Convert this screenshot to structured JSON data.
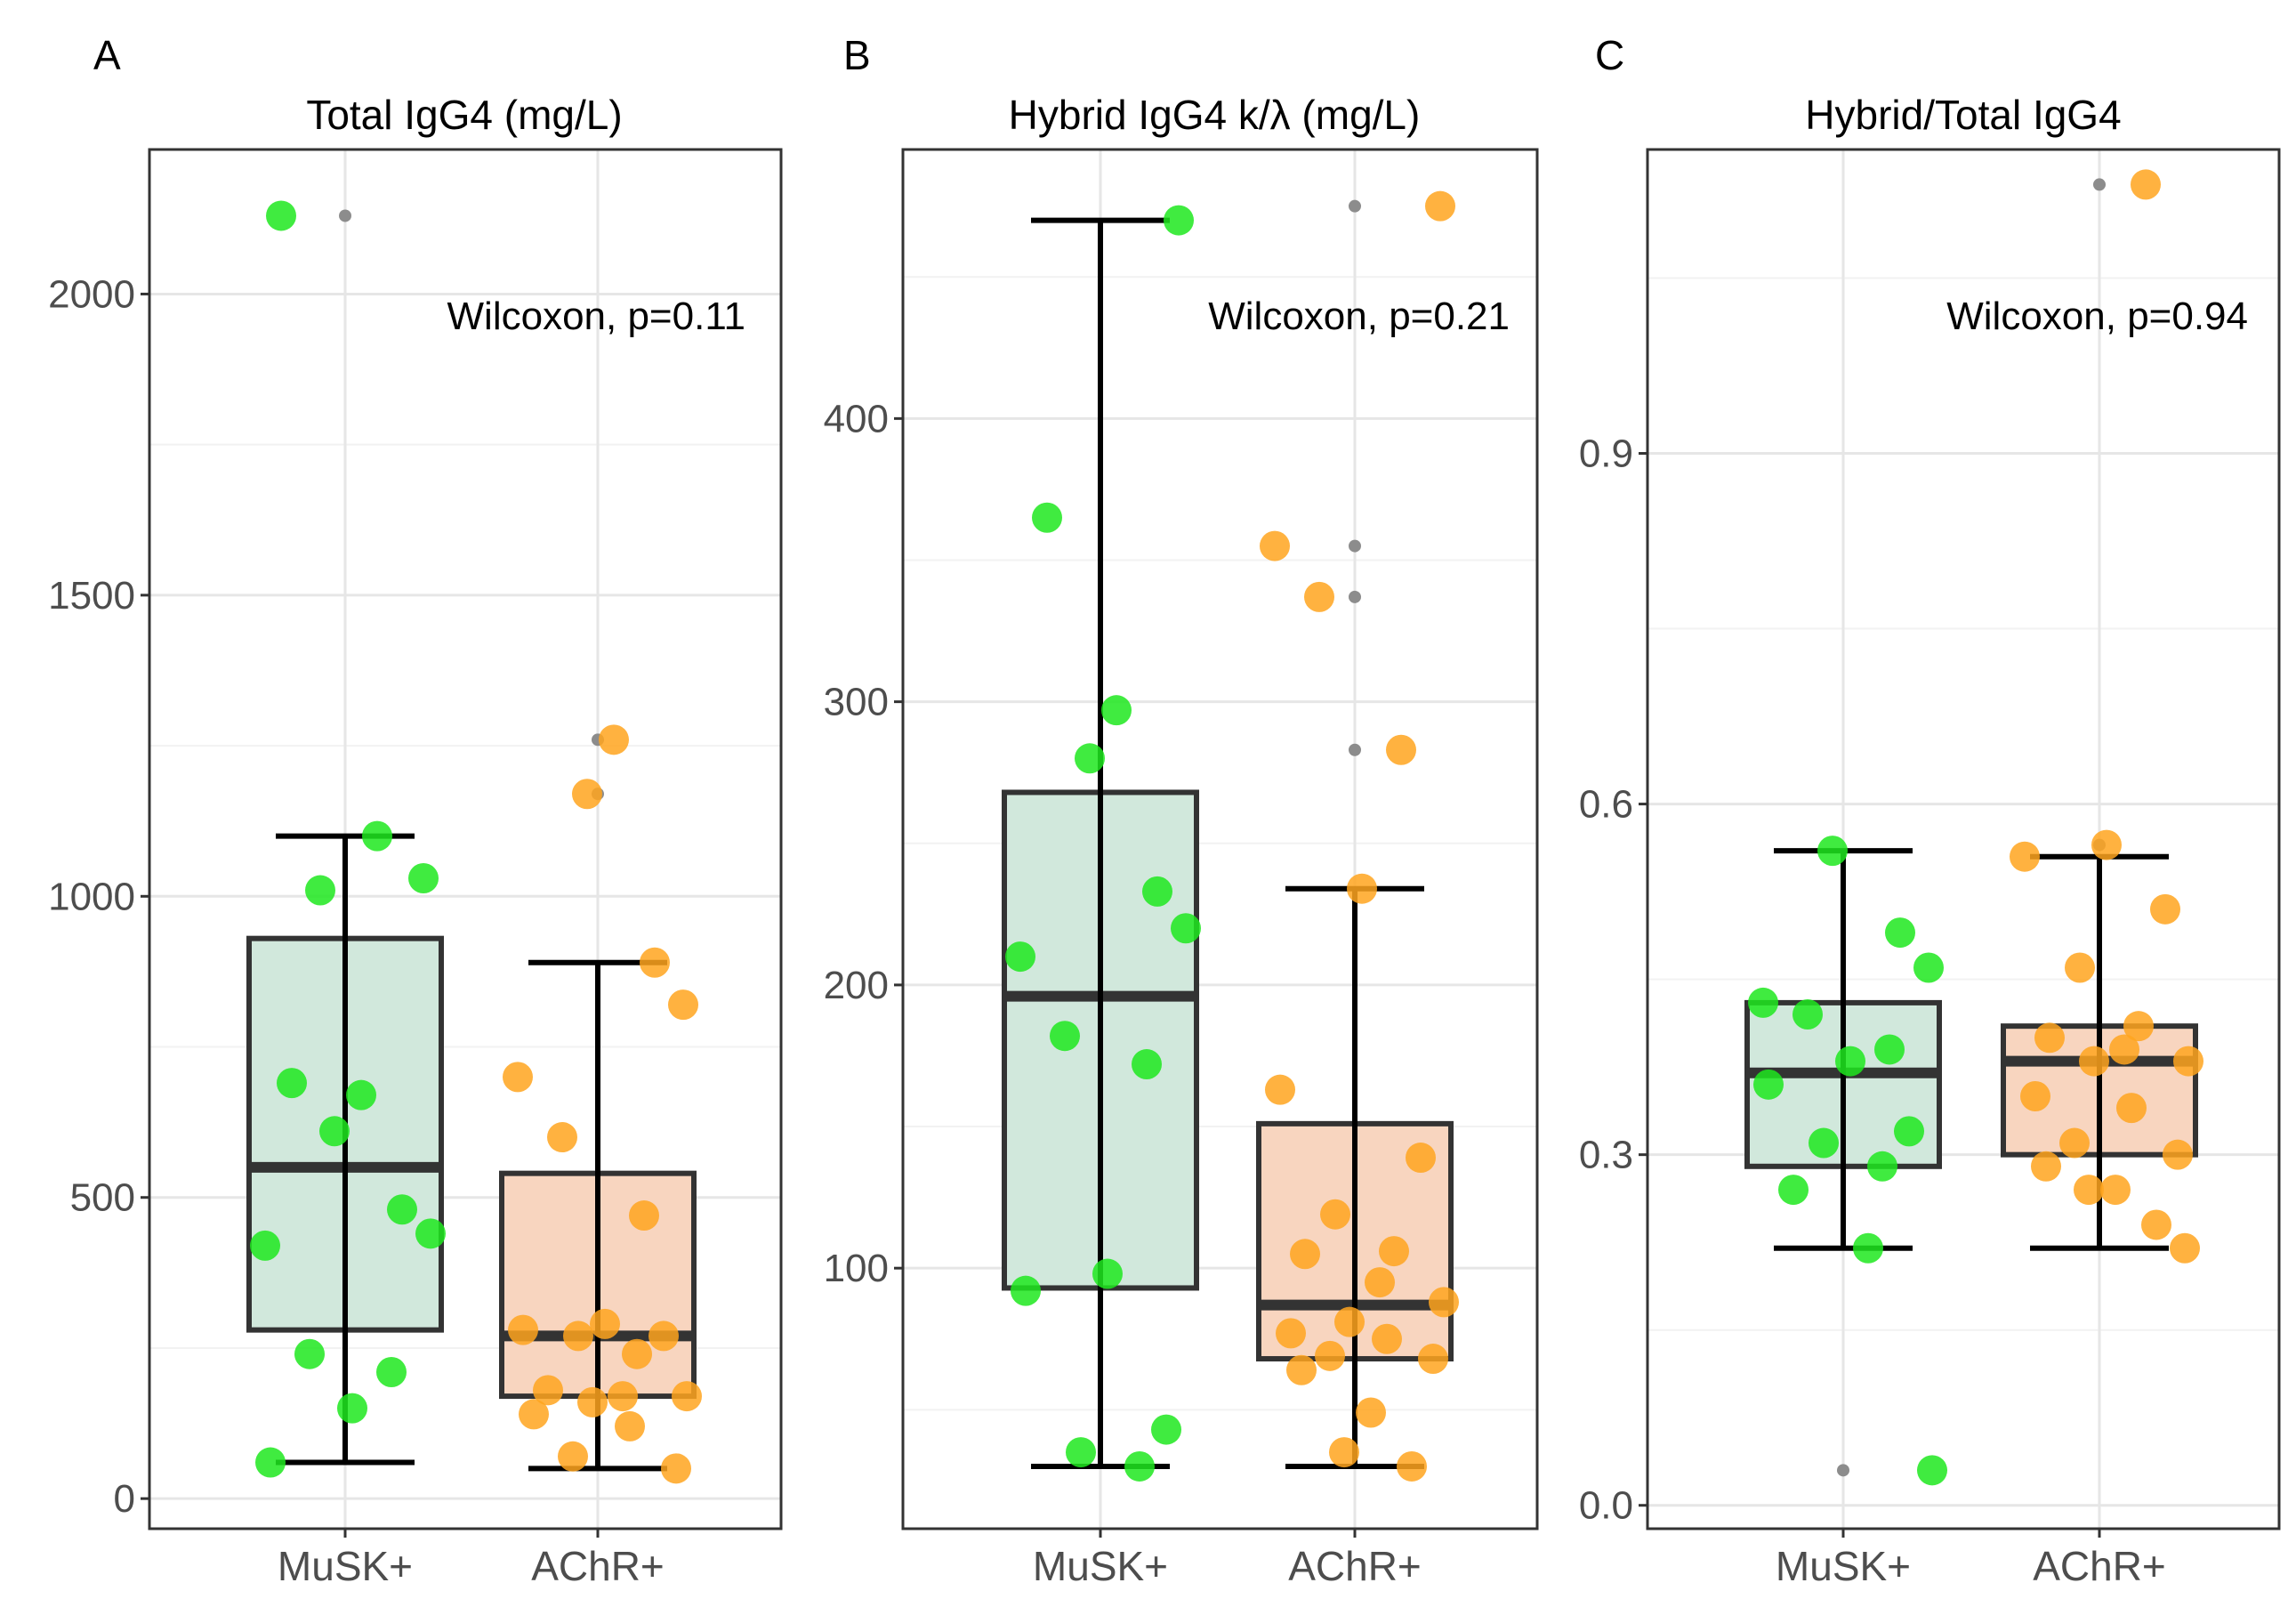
{
  "figure": {
    "panels": [
      {
        "letter": "A",
        "title": "Total IgG4 (mg/L)",
        "annotation": "Wilcoxon, p=0.11"
      },
      {
        "letter": "B",
        "title": "Hybrid IgG4 k/λ (mg/L)",
        "annotation": "Wilcoxon, p=0.21"
      },
      {
        "letter": "C",
        "title": "Hybrid/Total IgG4",
        "annotation": "Wilcoxon, p=0.94"
      }
    ]
  },
  "chart_data": [
    {
      "type": "box",
      "panel": "A",
      "title": "Total IgG4 (mg/L)",
      "annotation": "Wilcoxon, p=0.11",
      "categories": [
        "MuSK+",
        "AChR+"
      ],
      "ylim": [
        -50,
        2240
      ],
      "yticks": [
        0,
        500,
        1000,
        1500,
        2000
      ],
      "ytick_labels": [
        "0",
        "500",
        "1000",
        "1500",
        "2000"
      ],
      "colors": {
        "MuSK+": "#1fe81f",
        "AChR+": "#ffa51f",
        "MuSK+_box": "#d1e8dc",
        "AChR+_box": "#f8d5bf"
      },
      "boxes": [
        {
          "group": "MuSK+",
          "q1": 280,
          "median": 550,
          "q3": 930,
          "whisker_low": 60,
          "whisker_high": 1100
        },
        {
          "group": "AChR+",
          "q1": 170,
          "median": 270,
          "q3": 540,
          "whisker_low": 50,
          "whisker_high": 890
        }
      ],
      "outliers": [
        {
          "group": "MuSK+",
          "values": [
            2130
          ]
        },
        {
          "group": "AChR+",
          "values": [
            1170,
            1260
          ]
        }
      ],
      "points": [
        {
          "group": "MuSK+",
          "values": [
            2130,
            1100,
            1010,
            1030,
            690,
            670,
            610,
            480,
            440,
            420,
            240,
            210,
            150,
            60
          ]
        },
        {
          "group": "AChR+",
          "values": [
            1260,
            1170,
            890,
            820,
            700,
            600,
            470,
            290,
            280,
            270,
            270,
            240,
            180,
            170,
            170,
            160,
            140,
            120,
            70,
            50
          ]
        }
      ]
    },
    {
      "type": "box",
      "panel": "B",
      "title": "Hybrid IgG4 k/λ (mg/L)",
      "annotation": "Wilcoxon, p=0.21",
      "categories": [
        "MuSK+",
        "AChR+"
      ],
      "ylim": [
        8,
        495
      ],
      "yticks": [
        100,
        200,
        300,
        400
      ],
      "ytick_labels": [
        "100",
        "200",
        "300",
        "400"
      ],
      "colors": {
        "MuSK+": "#1fe81f",
        "AChR+": "#ffa51f",
        "MuSK+_box": "#d1e8dc",
        "AChR+_box": "#f8d5bf"
      },
      "boxes": [
        {
          "group": "MuSK+",
          "q1": 93,
          "median": 196,
          "q3": 268,
          "whisker_low": 30,
          "whisker_high": 470
        },
        {
          "group": "AChR+",
          "q1": 68,
          "median": 87,
          "q3": 151,
          "whisker_low": 30,
          "whisker_high": 234
        }
      ],
      "outliers": [
        {
          "group": "AChR+",
          "values": [
            475,
            355,
            337,
            283
          ]
        }
      ],
      "points": [
        {
          "group": "MuSK+",
          "values": [
            470,
            365,
            297,
            280,
            233,
            220,
            210,
            182,
            172,
            98,
            92,
            43,
            35,
            30
          ]
        },
        {
          "group": "AChR+",
          "values": [
            475,
            355,
            337,
            283,
            234,
            163,
            139,
            119,
            106,
            105,
            95,
            88,
            81,
            77,
            75,
            69,
            68,
            64,
            49,
            35,
            30
          ]
        }
      ]
    },
    {
      "type": "box",
      "panel": "C",
      "title": "Hybrid/Total IgG4",
      "annotation": "Wilcoxon, p=0.94",
      "categories": [
        "MuSK+",
        "AChR+"
      ],
      "ylim": [
        -0.02,
        1.16
      ],
      "yticks": [
        0.0,
        0.3,
        0.6,
        0.9
      ],
      "ytick_labels": [
        "0.0",
        "0.3",
        "0.6",
        "0.9"
      ],
      "colors": {
        "MuSK+": "#1fe81f",
        "AChR+": "#ffa51f",
        "MuSK+_box": "#d1e8dc",
        "AChR+_box": "#f8d5bf"
      },
      "boxes": [
        {
          "group": "MuSK+",
          "q1": 0.29,
          "median": 0.37,
          "q3": 0.43,
          "whisker_low": 0.22,
          "whisker_high": 0.56
        },
        {
          "group": "AChR+",
          "q1": 0.3,
          "median": 0.38,
          "q3": 0.41,
          "whisker_low": 0.22,
          "whisker_high": 0.555
        }
      ],
      "outliers": [
        {
          "group": "MuSK+",
          "values": [
            0.03
          ]
        },
        {
          "group": "AChR+",
          "values": [
            0.565,
            1.13
          ]
        }
      ],
      "points": [
        {
          "group": "MuSK+",
          "values": [
            0.56,
            0.49,
            0.46,
            0.43,
            0.42,
            0.39,
            0.38,
            0.36,
            0.32,
            0.31,
            0.29,
            0.27,
            0.22,
            0.03
          ]
        },
        {
          "group": "AChR+",
          "values": [
            1.13,
            0.565,
            0.555,
            0.51,
            0.46,
            0.41,
            0.4,
            0.39,
            0.38,
            0.38,
            0.35,
            0.34,
            0.31,
            0.3,
            0.29,
            0.27,
            0.27,
            0.24,
            0.22
          ]
        }
      ]
    }
  ]
}
